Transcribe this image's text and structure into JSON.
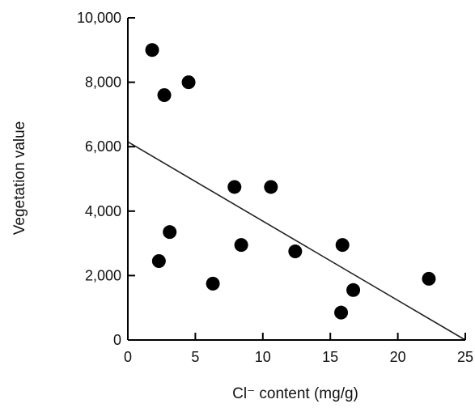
{
  "chart_data": {
    "type": "scatter",
    "xlabel": "Cl⁻ content (mg/g)",
    "ylabel": "Vegetation value",
    "xlim": [
      0,
      25
    ],
    "ylim": [
      0,
      10000
    ],
    "x_ticks": [
      0,
      5,
      10,
      15,
      20,
      25
    ],
    "x_tick_labels": [
      "0",
      "5",
      "10",
      "15",
      "20",
      "25"
    ],
    "y_ticks": [
      0,
      2000,
      4000,
      6000,
      8000,
      10000
    ],
    "y_tick_labels": [
      "0",
      "2,000",
      "4,000",
      "6,000",
      "8,000",
      "10,000"
    ],
    "grid": false,
    "series": [
      {
        "points": [
          {
            "x": 1.8,
            "y": 9000
          },
          {
            "x": 2.7,
            "y": 7600
          },
          {
            "x": 4.5,
            "y": 8000
          },
          {
            "x": 2.3,
            "y": 2450
          },
          {
            "x": 3.1,
            "y": 3350
          },
          {
            "x": 6.3,
            "y": 1750
          },
          {
            "x": 7.9,
            "y": 4750
          },
          {
            "x": 8.4,
            "y": 2950
          },
          {
            "x": 10.6,
            "y": 4750
          },
          {
            "x": 12.4,
            "y": 2750
          },
          {
            "x": 15.9,
            "y": 2950
          },
          {
            "x": 15.8,
            "y": 850
          },
          {
            "x": 16.7,
            "y": 1550
          },
          {
            "x": 22.3,
            "y": 1900
          }
        ]
      }
    ],
    "trendline": {
      "x": [
        0,
        25
      ],
      "y": [
        6150,
        0
      ]
    },
    "colors": {
      "marker": "#000000",
      "line": "#222222",
      "axis": "#000000"
    }
  }
}
